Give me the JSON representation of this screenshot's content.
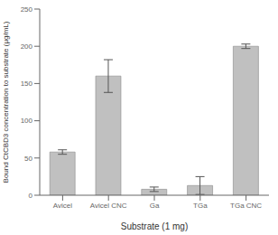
{
  "chart_data": {
    "type": "bar",
    "categories": [
      "Avicel",
      "Avicel CNC",
      "Ga",
      "TGa",
      "TGa CNC"
    ],
    "values": [
      58,
      160,
      8,
      13,
      200
    ],
    "errors": [
      3,
      22,
      3,
      12,
      3
    ],
    "color": "#c0c0c0",
    "xlabel": "Substrate (1 mg)",
    "ylabel": "Bound CtCBD3 concentration to substrate (μg/mL)",
    "ylim": [
      0,
      250
    ],
    "yticks": [
      0,
      50,
      100,
      150,
      200,
      250
    ],
    "grid": false
  }
}
